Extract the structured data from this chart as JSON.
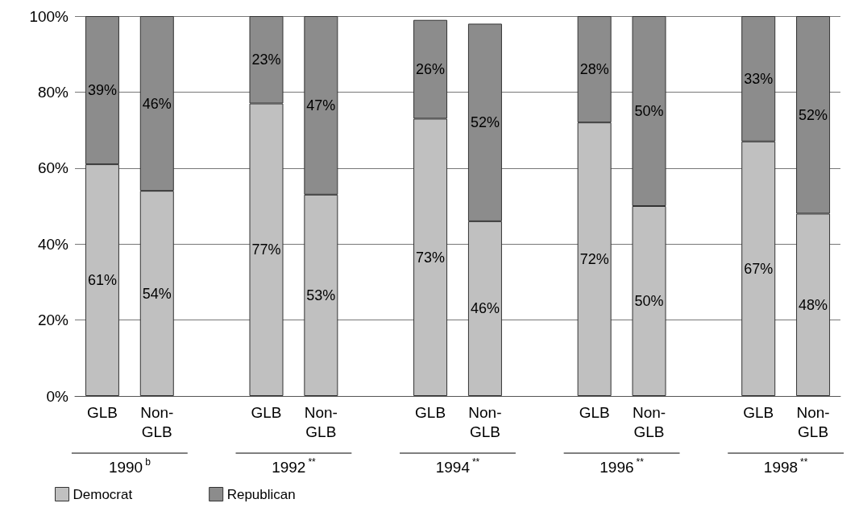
{
  "chart_data": {
    "type": "bar",
    "stacked": true,
    "categories": [
      "GLB",
      "Non-GLB",
      null,
      "GLB",
      "Non-GLB",
      null,
      "GLB",
      "Non-GLB",
      null,
      "GLB",
      "Non-GLB",
      null,
      "GLB",
      "Non-GLB"
    ],
    "series": [
      {
        "name": "Democrat",
        "color": "#c0c0c0",
        "values": [
          61,
          54,
          null,
          77,
          53,
          null,
          73,
          46,
          null,
          72,
          50,
          null,
          67,
          48
        ],
        "value_labels": [
          "61%",
          "54%",
          null,
          "77%",
          "53%",
          null,
          "73%",
          "46%",
          null,
          "72%",
          "50%",
          null,
          "67%",
          "48%"
        ]
      },
      {
        "name": "Republican",
        "color": "#8c8c8c",
        "values": [
          39,
          46,
          null,
          23,
          47,
          null,
          26,
          52,
          null,
          28,
          50,
          null,
          33,
          52
        ],
        "value_labels": [
          "39%",
          "46%",
          null,
          "23%",
          "47%",
          null,
          "26%",
          "52%",
          null,
          "28%",
          "50%",
          null,
          "33%",
          "52%"
        ]
      }
    ],
    "ylim": [
      0,
      100
    ],
    "yticks": [
      {
        "value": 0,
        "label": "0%"
      },
      {
        "value": 20,
        "label": "20%"
      },
      {
        "value": 40,
        "label": "40%"
      },
      {
        "value": 60,
        "label": "60%"
      },
      {
        "value": 80,
        "label": "80%"
      },
      {
        "value": 100,
        "label": "100%"
      }
    ],
    "grid": "y",
    "legend": "bottom left",
    "annotations": [
      "1990$^{b}$",
      "1992$^{**}$",
      "1994$^{**}$",
      "1996$^{**}$",
      "1998$^{**}$"
    ]
  }
}
